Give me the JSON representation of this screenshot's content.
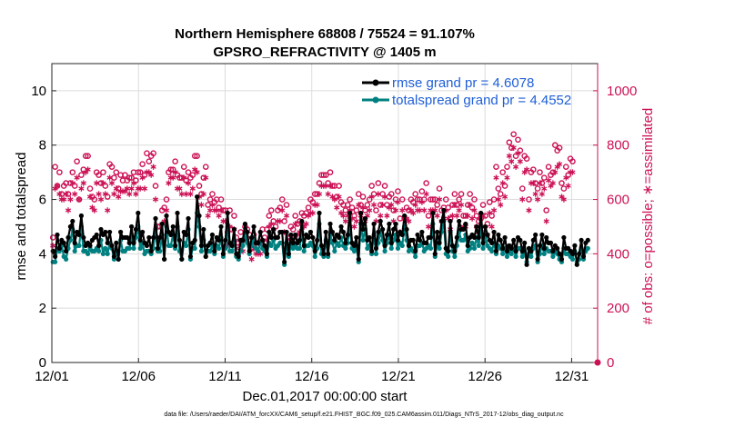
{
  "chart_data": {
    "type": "line",
    "title": "Northern Hemisphere 68808 / 75524 = 91.107%",
    "subtitle": "GPSRO_REFRACTIVITY @ 1405 m",
    "xlabel": "Dec.01,2017 00:00:00 start",
    "ylabel_left": "rmse and totalspread",
    "ylabel_right": "# of obs: o=possible; ∗=assimilated",
    "footnote": "data file: /Users/raeder/DAI/ATM_forcXX/CAM6_setup/f.e21.FHIST_BGC.f09_025.CAM6assim.011/Diags_NTrS_2017-12/obs_diag_output.nc",
    "xlim": [
      0,
      31.5
    ],
    "ylim_left": [
      0,
      11
    ],
    "ylim_right": [
      0,
      1100
    ],
    "x_ticks": [
      0,
      5,
      10,
      15,
      20,
      25,
      30
    ],
    "x_tick_labels": [
      "12/01",
      "12/06",
      "12/11",
      "12/16",
      "12/21",
      "12/26",
      "12/31"
    ],
    "y_ticks_left": [
      0,
      2,
      4,
      6,
      8,
      10
    ],
    "y_ticks_right": [
      0,
      200,
      400,
      600,
      800,
      1000
    ],
    "grid": true,
    "legend_position": "top-right",
    "colors": {
      "rmse": "#000000",
      "totalspread": "#008080",
      "obs": "#cc1155",
      "legend_text": "#1f5fd6"
    },
    "series": [
      {
        "name": "rmse grand pr = 4.6078",
        "values": [
          4.1,
          3.9,
          4.7,
          4.2,
          4.5,
          4.4,
          4.1,
          4.6,
          5.0,
          5.2,
          4.4,
          4.8,
          4.7,
          5.4,
          4.6,
          4.3,
          4.4,
          4.3,
          4.5,
          4.6,
          4.7,
          4.3,
          4.9,
          4.7,
          4.8,
          4.4,
          4.8,
          4.3,
          3.9,
          4.4,
          3.8,
          4.8,
          4.6,
          4.6,
          4.6,
          4.4,
          5.0,
          4.4,
          4.9,
          5.5,
          4.5,
          4.8,
          4.4,
          4.3,
          4.6,
          4.1,
          4.6,
          5.3,
          4.2,
          4.6,
          5.1,
          3.8,
          5.4,
          4.8,
          4.7,
          5.0,
          4.3,
          5.5,
          4.5,
          3.8,
          4.8,
          4.7,
          5.3,
          3.9,
          4.4,
          4.5,
          6.1,
          5.4,
          4.3,
          4.9,
          3.9,
          4.3,
          4.4,
          4.7,
          4.1,
          4.6,
          4.5,
          5.0,
          4.0,
          4.5,
          5.5,
          4.4,
          4.3,
          4.9,
          4.0,
          3.9,
          4.5,
          4.5,
          5.1,
          4.8,
          4.1,
          4.6,
          5.0,
          4.4,
          4.4,
          4.8,
          4.5,
          4.3,
          4.0,
          4.8,
          4.6,
          4.9,
          4.6,
          4.6,
          4.8,
          4.8,
          3.7,
          4.8,
          4.0,
          4.7,
          4.4,
          4.7,
          4.4,
          4.5,
          5.2,
          4.3,
          4.7,
          4.6,
          4.8,
          4.6,
          4.1,
          4.5,
          5.5,
          4.3,
          4.0,
          4.8,
          4.0,
          5.1,
          4.8,
          4.5,
          4.7,
          4.6,
          5.0,
          4.8,
          4.4,
          4.7,
          5.5,
          4.4,
          4.3,
          4.6,
          3.8,
          5.5,
          4.9,
          5.3,
          4.5,
          4.6,
          4.1,
          5.1,
          4.2,
          4.8,
          5.2,
          4.9,
          4.3,
          4.7,
          5.1,
          4.4,
          4.9,
          5.1,
          4.5,
          4.8,
          4.7,
          5.4,
          4.9,
          4.3,
          4.5,
          4.5,
          4.1,
          4.7,
          4.5,
          4.8,
          4.4,
          4.4,
          4.6,
          4.6,
          5.5,
          4.0,
          4.8,
          4.4,
          5.2,
          5.6,
          4.2,
          4.1,
          5.2,
          4.3,
          4.1,
          4.6,
          5.2,
          4.9,
          4.9,
          5.1,
          4.3,
          4.6,
          4.7,
          4.6,
          5.0,
          4.6,
          5.5,
          4.4,
          5.0,
          4.7,
          4.5,
          4.4,
          4.8,
          4.1,
          4.7,
          4.5,
          4.2,
          4.6,
          4.1,
          4.3,
          4.2,
          4.5,
          4.1,
          4.6,
          4.5,
          4.1,
          4.4,
          3.6,
          4.2,
          4.1,
          4.5,
          4.7,
          3.8,
          4.3,
          4.7,
          4.2,
          4.6,
          4.4,
          4.4,
          4.1,
          4.3,
          4.2,
          4.0,
          3.8,
          4.6,
          4.2,
          4.2,
          4.1,
          4.0,
          4.3,
          3.6,
          4.0,
          4.5,
          3.9,
          4.4,
          4.5
        ]
      },
      {
        "name": "totalspread grand pr = 4.4552",
        "values": [
          3.7,
          3.7,
          4.2,
          4.1,
          4.3,
          3.9,
          3.8,
          4.2,
          4.5,
          4.9,
          4.1,
          4.3,
          4.3,
          5.0,
          4.1,
          4.1,
          4.0,
          4.2,
          4.1,
          4.1,
          4.2,
          4.1,
          4.5,
          4.0,
          4.2,
          4.0,
          4.4,
          4.2,
          3.8,
          4.1,
          3.8,
          4.5,
          4.1,
          4.1,
          4.2,
          4.2,
          4.6,
          4.2,
          4.6,
          5.0,
          4.2,
          4.4,
          4.0,
          4.1,
          4.1,
          4.0,
          4.2,
          4.9,
          4.1,
          4.1,
          4.7,
          3.8,
          5.0,
          4.3,
          4.3,
          4.7,
          4.2,
          5.0,
          4.1,
          3.8,
          4.4,
          4.3,
          4.9,
          3.8,
          4.2,
          4.2,
          5.5,
          5.0,
          4.1,
          4.5,
          3.9,
          4.1,
          4.1,
          4.3,
          4.0,
          4.3,
          4.2,
          4.6,
          3.9,
          4.2,
          5.0,
          4.1,
          4.1,
          4.5,
          3.9,
          3.8,
          4.1,
          4.3,
          4.7,
          4.4,
          4.0,
          4.3,
          4.6,
          4.2,
          4.1,
          4.4,
          4.2,
          4.1,
          3.9,
          4.4,
          4.3,
          4.5,
          4.2,
          4.3,
          4.4,
          4.4,
          3.6,
          4.4,
          3.9,
          4.3,
          4.2,
          4.3,
          4.2,
          4.2,
          4.8,
          4.1,
          4.3,
          4.3,
          4.4,
          4.3,
          3.9,
          4.2,
          5.1,
          4.0,
          3.9,
          4.5,
          3.9,
          4.7,
          4.4,
          4.1,
          4.4,
          4.3,
          4.6,
          4.3,
          4.2,
          4.4,
          5.0,
          4.2,
          4.1,
          4.3,
          3.7,
          5.1,
          4.5,
          4.9,
          4.2,
          4.3,
          4.0,
          4.7,
          4.0,
          4.4,
          4.8,
          4.5,
          4.1,
          4.4,
          4.7,
          4.2,
          4.5,
          4.7,
          4.2,
          4.4,
          4.3,
          5.0,
          4.5,
          4.1,
          4.2,
          4.1,
          3.9,
          4.3,
          4.3,
          4.4,
          4.1,
          4.2,
          4.3,
          4.2,
          5.1,
          3.9,
          4.4,
          4.2,
          4.8,
          5.2,
          4.0,
          3.9,
          4.8,
          4.1,
          3.9,
          4.3,
          4.8,
          4.5,
          4.5,
          4.7,
          4.1,
          4.2,
          4.4,
          4.2,
          4.6,
          4.3,
          5.0,
          4.2,
          4.6,
          4.3,
          4.2,
          4.1,
          4.4,
          4.0,
          4.3,
          4.2,
          4.0,
          4.2,
          3.9,
          4.1,
          4.0,
          4.2,
          3.9,
          4.2,
          4.2,
          3.9,
          4.1,
          3.7,
          4.0,
          3.9,
          4.2,
          4.3,
          3.7,
          4.0,
          4.3,
          4.0,
          4.2,
          4.1,
          4.1,
          3.9,
          4.1,
          4.0,
          3.8,
          3.7,
          4.2,
          4.0,
          4.0,
          3.9,
          3.8,
          4.1,
          3.7,
          3.8,
          4.2,
          3.8,
          4.1,
          4.2
        ]
      }
    ],
    "obs_possible": [
      460,
      720,
      650,
      700,
      620,
      650,
      660,
      620,
      660,
      700,
      650,
      740,
      600,
      690,
      710,
      760,
      760,
      640,
      610,
      600,
      700,
      690,
      660,
      700,
      650,
      610,
      730,
      720,
      680,
      700,
      640,
      690,
      670,
      690,
      670,
      680,
      680,
      700,
      670,
      700,
      700,
      730,
      690,
      770,
      740,
      760,
      770,
      650,
      500,
      500,
      560,
      570,
      600,
      700,
      710,
      710,
      740,
      690,
      680,
      680,
      720,
      670,
      700,
      680,
      690,
      760,
      760,
      650,
      620,
      680,
      720,
      580,
      600,
      620,
      590,
      600,
      570,
      600,
      560,
      560,
      480,
      560,
      490,
      540,
      460,
      440,
      480,
      450,
      500,
      490,
      470,
      420,
      470,
      440,
      440,
      440,
      490,
      460,
      490,
      540,
      560,
      520,
      500,
      560,
      570,
      600,
      520,
      580,
      460,
      500,
      490,
      540,
      510,
      520,
      550,
      540,
      550,
      570,
      600,
      590,
      620,
      620,
      660,
      690,
      690,
      690,
      660,
      700,
      650,
      650,
      610,
      650,
      590,
      580,
      560,
      580,
      600,
      570,
      540,
      560,
      620,
      580,
      610,
      560,
      580,
      600,
      650,
      620,
      560,
      660,
      580,
      620,
      650,
      580,
      610,
      620,
      560,
      600,
      630,
      530,
      600,
      530,
      570,
      560,
      600,
      590,
      620,
      600,
      600,
      630,
      600,
      660,
      540,
      600,
      600,
      600,
      580,
      640,
      560,
      570,
      600,
      570,
      530,
      580,
      620,
      580,
      600,
      620,
      540,
      540,
      580,
      620,
      570,
      600,
      540,
      520,
      530,
      580,
      540,
      510,
      590,
      540,
      600,
      720,
      640,
      620,
      700,
      650,
      720,
      810,
      790,
      840,
      760,
      820,
      780,
      640,
      760,
      750,
      600,
      700,
      710,
      660,
      640,
      700,
      660,
      680,
      560,
      720,
      690,
      700,
      800,
      780,
      790,
      660,
      640,
      720,
      690,
      750,
      740
    ],
    "obs_assimilated": [
      430,
      640,
      650,
      620,
      600,
      600,
      620,
      560,
      600,
      660,
      620,
      680,
      600,
      640,
      660,
      700,
      710,
      610,
      570,
      560,
      660,
      620,
      600,
      660,
      620,
      560,
      680,
      660,
      620,
      640,
      610,
      630,
      630,
      630,
      640,
      620,
      640,
      660,
      620,
      640,
      640,
      680,
      640,
      700,
      700,
      690,
      720,
      600,
      460,
      460,
      510,
      520,
      560,
      660,
      680,
      680,
      700,
      640,
      640,
      620,
      680,
      620,
      660,
      620,
      640,
      710,
      700,
      610,
      580,
      620,
      680,
      540,
      560,
      580,
      560,
      560,
      540,
      560,
      520,
      520,
      430,
      500,
      440,
      490,
      420,
      400,
      440,
      410,
      460,
      450,
      430,
      380,
      420,
      400,
      400,
      400,
      450,
      420,
      450,
      500,
      510,
      490,
      460,
      520,
      520,
      560,
      480,
      540,
      420,
      460,
      450,
      510,
      470,
      480,
      510,
      500,
      510,
      540,
      550,
      550,
      580,
      580,
      620,
      650,
      650,
      650,
      620,
      650,
      610,
      600,
      570,
      610,
      550,
      540,
      520,
      540,
      560,
      530,
      500,
      520,
      580,
      540,
      570,
      520,
      540,
      560,
      610,
      580,
      520,
      620,
      540,
      580,
      610,
      540,
      570,
      580,
      520,
      560,
      590,
      480,
      560,
      490,
      530,
      520,
      560,
      550,
      580,
      560,
      560,
      590,
      560,
      620,
      500,
      560,
      560,
      560,
      540,
      600,
      520,
      530,
      560,
      530,
      490,
      540,
      580,
      540,
      560,
      580,
      500,
      500,
      540,
      580,
      530,
      560,
      500,
      480,
      490,
      540,
      500,
      470,
      550,
      500,
      560,
      680,
      600,
      580,
      660,
      610,
      680,
      760,
      740,
      790,
      720,
      770,
      740,
      600,
      700,
      710,
      560,
      660,
      660,
      620,
      600,
      660,
      620,
      640,
      520,
      670,
      650,
      660,
      700,
      720,
      730,
      610,
      600,
      680,
      650,
      700,
      700
    ],
    "obs_zero_marker": {
      "x": 31.5,
      "value": 0
    }
  }
}
